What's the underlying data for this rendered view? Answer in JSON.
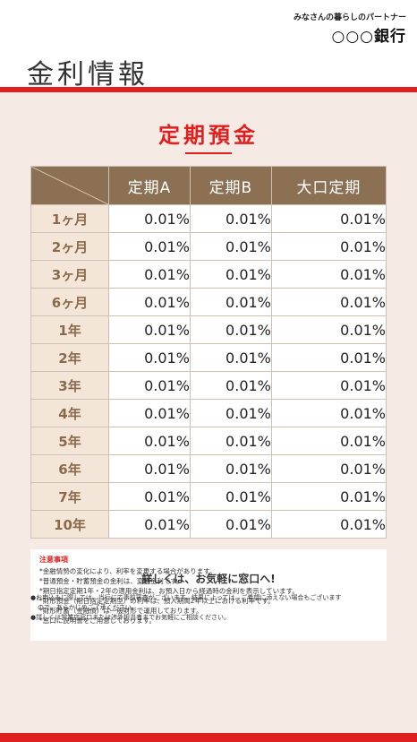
{
  "header": {
    "tagline": "みなさんの暮らしのパートナー",
    "bank_name": "○○○銀行",
    "page_title": "金利情報"
  },
  "main": {
    "title": "定期預金",
    "columns": [
      "定期A",
      "定期B",
      "大口定期"
    ],
    "rows": [
      {
        "term": "1ヶ月",
        "rates": [
          "0.01%",
          "0.01%",
          "0.01%"
        ]
      },
      {
        "term": "2ヶ月",
        "rates": [
          "0.01%",
          "0.01%",
          "0.01%"
        ]
      },
      {
        "term": "3ヶ月",
        "rates": [
          "0.01%",
          "0.01%",
          "0.01%"
        ]
      },
      {
        "term": "6ヶ月",
        "rates": [
          "0.01%",
          "0.01%",
          "0.01%"
        ]
      },
      {
        "term": "1年",
        "rates": [
          "0.01%",
          "0.01%",
          "0.01%"
        ]
      },
      {
        "term": "2年",
        "rates": [
          "0.01%",
          "0.01%",
          "0.01%"
        ]
      },
      {
        "term": "3年",
        "rates": [
          "0.01%",
          "0.01%",
          "0.01%"
        ]
      },
      {
        "term": "4年",
        "rates": [
          "0.01%",
          "0.01%",
          "0.01%"
        ]
      },
      {
        "term": "5年",
        "rates": [
          "0.01%",
          "0.01%",
          "0.01%"
        ]
      },
      {
        "term": "6年",
        "rates": [
          "0.01%",
          "0.01%",
          "0.01%"
        ]
      },
      {
        "term": "7年",
        "rates": [
          "0.01%",
          "0.01%",
          "0.01%"
        ]
      },
      {
        "term": "10年",
        "rates": [
          "0.01%",
          "0.01%",
          "0.01%"
        ]
      }
    ]
  },
  "notes": {
    "heading": "注意事項",
    "lines": [
      "*金融情勢の変化により、利率を変更する場合があります。",
      "*普通預金・貯蓄預金の金利は、変動金利です。",
      "*期日指定定期1年・2年の適用金利は、お預入日から経過時の金利を表示しています。",
      "*財形預金（期日指定定期型）の利率は、預入期間2年以上における利率です。",
      "*財形貯蓄（金融債）は一般財形で運用しております。",
      "*窓口に説明書をご用意しております。"
    ]
  },
  "cta": {
    "text": "詳しくは、お気軽に窓口へ!"
  },
  "bullets": [
    {
      "text": "●お申込みに際しては、当行にて事前審査がございます。結果によっては、ご希望に添えない場合もございます",
      "continuation": "ので、あらかじめご了承ください。"
    },
    {
      "text": "●詳しくは営業店窓口または渉外担当者までお気軽にご相談ください。",
      "continuation": ""
    }
  ],
  "colors": {
    "accent_red": "#e02020",
    "header_brown": "#8b7053",
    "panel_bg": "#f6ebe4"
  }
}
